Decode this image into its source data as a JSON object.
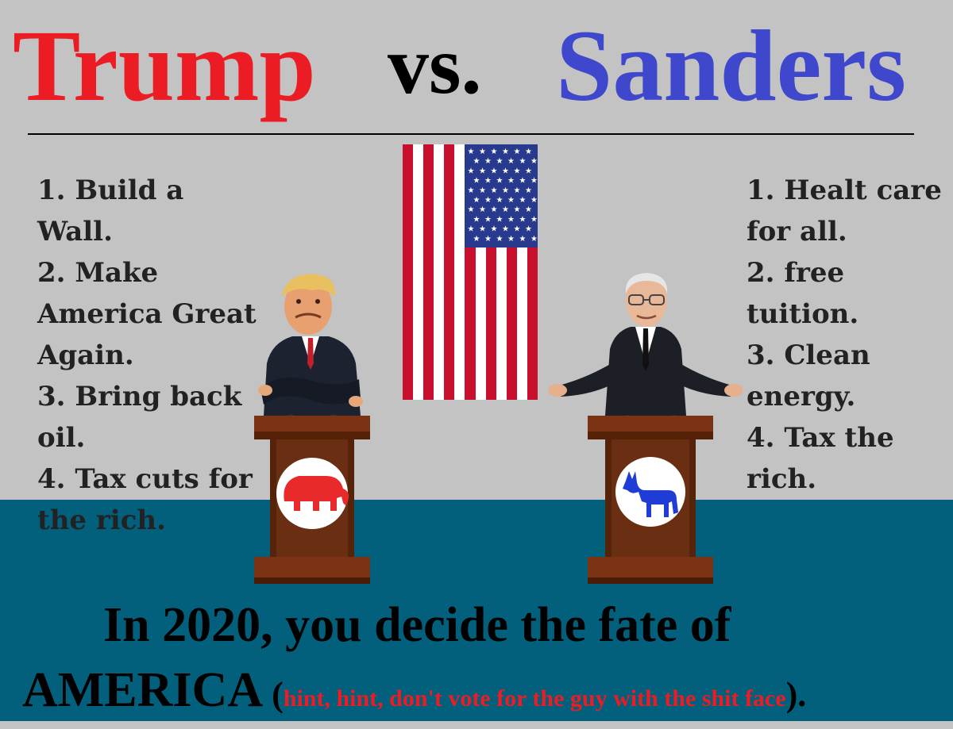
{
  "title": {
    "left_name": "Trump",
    "middle": "vs.",
    "right_name": "Sanders"
  },
  "colors": {
    "republican_red": "#ec1c24",
    "democrat_blue": "#3f48cc",
    "wall": "#c3c3c3",
    "floor": "#02607c",
    "podium_wood": "#6a2e12"
  },
  "trump_list": [
    "1. Build a Wall.",
    "2. Make America Great Again.",
    "3. Bring back oil.",
    "4. Tax cuts for the rich."
  ],
  "sanders_list": [
    "1. Healt care for all.",
    "2. free tuition.",
    "3. Clean energy.",
    "4. Tax the rich."
  ],
  "icons": {
    "flag": "american-flag-icon",
    "elephant": "gop-elephant-icon",
    "donkey": "dem-donkey-icon"
  },
  "slogan": {
    "line1": "In 2020, you decide the fate of",
    "line2_main": "AMERICA",
    "open_paren": " (",
    "hint": "hint, hint, don't vote for the guy with the shit face",
    "close": ")."
  }
}
